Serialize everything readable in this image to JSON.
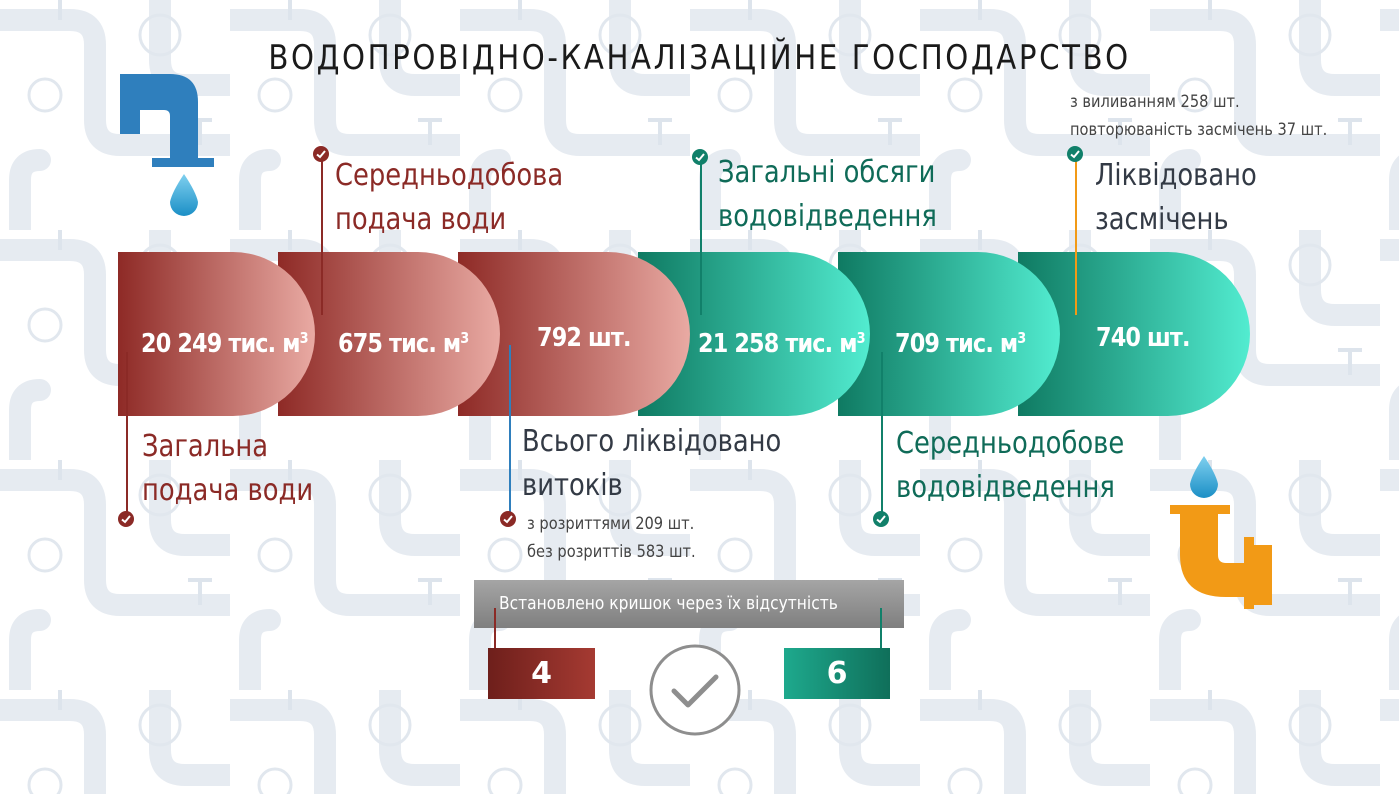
{
  "title": "ВОДОПРОВІДНО-КАНАЛІЗАЦІЙНЕ ГОСПОДАРСТВО",
  "colors": {
    "red_dark": "#8b2a26",
    "red_light": "#e9aaa3",
    "teal_dark": "#11806a",
    "teal_light": "#52ecd0",
    "blue_pipe": "#2f7fbd",
    "orange_pipe": "#f29a16",
    "text_dark": "#333a45"
  },
  "segments": [
    {
      "value": "20 249 тис. м",
      "sup": "3",
      "label_line1": "Загальна",
      "label_line2": "подача води"
    },
    {
      "value": "675 тис. м",
      "sup": "3",
      "label_line1": "Середньодобова",
      "label_line2": "подача води"
    },
    {
      "value": "792 шт.",
      "sup": "",
      "label_line1": "Всього ліквідовано",
      "label_line2": "витоків",
      "note_line1": "з розриттями 209 шт.",
      "note_line2": "без розриттів 583 шт."
    },
    {
      "value": "21 258 тис. м",
      "sup": "3",
      "label_line1": "Загальні обсяги",
      "label_line2": "водовідведення"
    },
    {
      "value": "709 тис. м",
      "sup": "3",
      "label_line1": "Середньодобове",
      "label_line2": "водовідведення"
    },
    {
      "value": "740 шт.",
      "sup": "",
      "label_line1": "Ліквідовано",
      "label_line2": "засмічень",
      "note_line1": "з виливанням 258 шт.",
      "note_line2": "повторюваність засмічень 37 шт."
    }
  ],
  "lids": {
    "title": "Встановлено кришок  через їх відсутність",
    "water_value": "4",
    "sewer_value": "6"
  },
  "icons": [
    "water-tap-icon",
    "water-drop-icon",
    "sewer-pipe-icon",
    "check-circle-icon",
    "big-check-icon"
  ]
}
